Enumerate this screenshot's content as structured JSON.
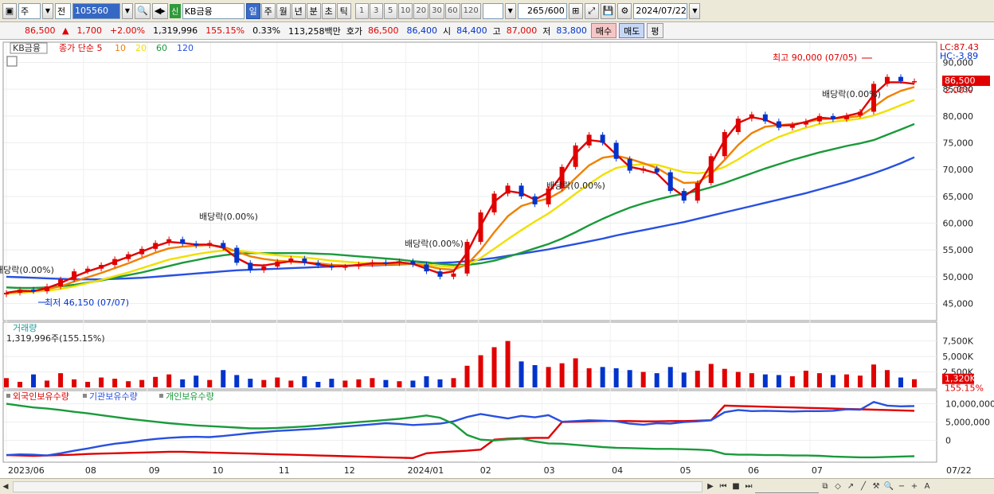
{
  "toolbar": {
    "market": "주",
    "filter": "전",
    "code": "105560",
    "new_badge": "신",
    "stock_name": "KB금융",
    "periods": [
      "일",
      "주",
      "월",
      "년",
      "분",
      "초",
      "틱"
    ],
    "active_period": "일",
    "minute_steps": [
      "1",
      "3",
      "5",
      "10",
      "20",
      "30",
      "60",
      "120"
    ],
    "count": "265",
    "count_total": "/600",
    "date": "2024/07/22"
  },
  "quote": {
    "price": "86,500",
    "change": "1,700",
    "change_pct": "+2.00%",
    "volume": "1,319,996",
    "volume_ratio": "155.15%",
    "turnover": "0.33%",
    "amount": "113,258백만",
    "ask_label": "호가",
    "ask": "86,500",
    "bid": "86,400",
    "open_label": "시",
    "open": "84,400",
    "high_label": "고",
    "high": "87,000",
    "low_label": "저",
    "low": "83,800",
    "buy": "매수",
    "sell": "매도",
    "avg": "평"
  },
  "chart_data": [
    {
      "type": "candlestick",
      "panel": "price",
      "stock": "KB금융",
      "legend": [
        "종가 단순 5",
        "10",
        "20",
        "60",
        "120"
      ],
      "legend_colors": [
        "#e00000",
        "#f08000",
        "#f0e000",
        "#1a9a3a",
        "#2850e0"
      ],
      "x_labels": [
        "2023/06",
        "08",
        "09",
        "10",
        "11",
        "12",
        "2024/01",
        "02",
        "03",
        "04",
        "05",
        "06",
        "07",
        "07/22"
      ],
      "y_ticks": [
        "90,000",
        "85,000",
        "80,000",
        "75,000",
        "70,000",
        "65,000",
        "60,000",
        "55,000",
        "50,000",
        "45,000"
      ],
      "ylim": [
        43000,
        92000
      ],
      "lc": "LC:87.43",
      "hc": "HC:-3.89",
      "last_price_tag": "86,500",
      "last_pct_tag": "2.00%",
      "annotations": {
        "high": "최고 90,000 (07/05)",
        "low": "최저 46,150 (07/07)",
        "dividends": [
          "배당락(0.00%)",
          "배당락(0.00%)",
          "배당락(0.00%)",
          "배당락(0.00%)",
          "배당락(0.00%)"
        ]
      },
      "close": [
        47000,
        47600,
        47300,
        48200,
        49500,
        51000,
        51500,
        52200,
        53300,
        54200,
        55200,
        56300,
        57000,
        56200,
        55800,
        56300,
        55400,
        52600,
        51200,
        51900,
        52800,
        53400,
        52600,
        52100,
        51700,
        51900,
        52300,
        52700,
        52500,
        52900,
        52300,
        51000,
        50000,
        50600,
        56500,
        62000,
        65500,
        67000,
        65000,
        63500,
        66500,
        70500,
        74500,
        76500,
        75000,
        72000,
        69800,
        70200,
        69500,
        66000,
        64200,
        67500,
        72500,
        77000,
        79500,
        80300,
        79000,
        77800,
        78400,
        79000,
        80000,
        79400,
        80100,
        80800,
        86000,
        87300,
        86500,
        86500
      ],
      "ma5": [
        47000,
        47400,
        47300,
        47900,
        48800,
        50000,
        51000,
        51800,
        52800,
        53700,
        54700,
        55700,
        56500,
        56300,
        56000,
        56000,
        55400,
        53500,
        52200,
        52100,
        52500,
        52900,
        52700,
        52300,
        51900,
        52000,
        52200,
        52500,
        52500,
        52700,
        52400,
        51500,
        50600,
        51000,
        54500,
        59500,
        64000,
        66000,
        65600,
        64400,
        65700,
        69000,
        73000,
        75500,
        75200,
        72800,
        70500,
        70000,
        69300,
        66800,
        65000,
        66700,
        71000,
        75500,
        78700,
        79800,
        79300,
        78200,
        78300,
        78900,
        79700,
        79500,
        80000,
        80600,
        84000,
        86300,
        86300,
        86000
      ],
      "ma10": [
        47000,
        47200,
        47300,
        47700,
        48200,
        49100,
        49900,
        50700,
        51600,
        52500,
        53500,
        54500,
        55300,
        55600,
        55800,
        55900,
        55600,
        54700,
        53800,
        53300,
        53000,
        52800,
        52700,
        52500,
        52200,
        52100,
        52100,
        52200,
        52300,
        52400,
        52400,
        52000,
        51500,
        51300,
        52300,
        55000,
        58300,
        61300,
        63200,
        64000,
        64600,
        66000,
        68400,
        70800,
        72200,
        72600,
        72000,
        71200,
        70300,
        68800,
        67500,
        67600,
        69200,
        71800,
        74600,
        76800,
        78000,
        78300,
        78500,
        78800,
        79400,
        79500,
        79700,
        80000,
        81700,
        83500,
        84700,
        85400
      ],
      "ma20": [
        46800,
        47000,
        47200,
        47400,
        47700,
        48200,
        48800,
        49400,
        50100,
        50800,
        51600,
        52400,
        53200,
        53700,
        54200,
        54600,
        54900,
        54900,
        54600,
        54300,
        54000,
        53800,
        53600,
        53300,
        53000,
        52800,
        52600,
        52500,
        52500,
        52500,
        52400,
        52300,
        52000,
        51800,
        52200,
        53500,
        55200,
        57000,
        58700,
        60300,
        61800,
        63600,
        65500,
        67300,
        69000,
        70300,
        70800,
        71000,
        70900,
        70200,
        69500,
        69300,
        69600,
        70500,
        71900,
        73500,
        74900,
        76100,
        77000,
        77800,
        78500,
        78900,
        79200,
        79500,
        80100,
        81000,
        82000,
        83000
      ],
      "ma60": [
        48000,
        47900,
        47900,
        48000,
        48200,
        48500,
        48900,
        49300,
        49800,
        50300,
        50800,
        51400,
        52000,
        52600,
        53100,
        53600,
        54000,
        54300,
        54400,
        54400,
        54400,
        54400,
        54400,
        54300,
        54200,
        54000,
        53800,
        53600,
        53400,
        53200,
        52900,
        52700,
        52400,
        52200,
        52200,
        52500,
        53000,
        53700,
        54500,
        55300,
        56100,
        57100,
        58300,
        59600,
        60800,
        61900,
        62900,
        63700,
        64400,
        65000,
        65500,
        66000,
        66700,
        67500,
        68400,
        69300,
        70200,
        71000,
        71800,
        72500,
        73200,
        73800,
        74400,
        74900,
        75500,
        76500,
        77500,
        78500
      ],
      "ma120": [
        50000,
        49900,
        49800,
        49700,
        49600,
        49500,
        49500,
        49500,
        49600,
        49700,
        49800,
        50000,
        50200,
        50400,
        50600,
        50800,
        51000,
        51200,
        51300,
        51400,
        51500,
        51600,
        51700,
        51800,
        51900,
        52000,
        52100,
        52100,
        52200,
        52300,
        52400,
        52500,
        52600,
        52700,
        52900,
        53200,
        53500,
        53900,
        54300,
        54700,
        55100,
        55600,
        56100,
        56600,
        57100,
        57700,
        58200,
        58700,
        59200,
        59700,
        60200,
        60800,
        61400,
        62000,
        62600,
        63200,
        63800,
        64400,
        65000,
        65600,
        66300,
        67000,
        67700,
        68500,
        69300,
        70200,
        71200,
        72300
      ]
    },
    {
      "type": "bar",
      "panel": "volume",
      "title": "거래량",
      "subtitle": "1,319,996주(155.15%)",
      "y_ticks": [
        "7,500K",
        "5,000K",
        "2,500K"
      ],
      "ylim": [
        0,
        9000000
      ],
      "last_tag": "1,320K",
      "last_pct_tag": "155.15%",
      "values": [
        1500,
        900,
        2100,
        1100,
        2300,
        1300,
        900,
        1600,
        1400,
        1000,
        1200,
        1700,
        2100,
        1300,
        1900,
        1200,
        2800,
        2000,
        1400,
        1200,
        1600,
        1100,
        1800,
        900,
        1400,
        1100,
        1300,
        1500,
        1200,
        1000,
        1100,
        1800,
        1300,
        1500,
        3500,
        5200,
        6500,
        7500,
        4200,
        3600,
        3300,
        3900,
        4700,
        3100,
        3300,
        3100,
        2800,
        2500,
        2300,
        3300,
        2400,
        2700,
        3800,
        3000,
        2500,
        2300,
        2100,
        2000,
        1800,
        2700,
        2300,
        2000,
        2100,
        1900,
        3700,
        2800,
        1600,
        1320
      ]
    },
    {
      "type": "line",
      "panel": "holdings",
      "legend": [
        "외국인보유수량",
        "기관보유수량",
        "개인보유수량"
      ],
      "legend_colors": [
        "#e00000",
        "#2850e0",
        "#1a9a3a"
      ],
      "y_ticks": [
        "10,000,000",
        "5,000,000",
        "0"
      ],
      "series": [
        {
          "name": "외국인보유수량",
          "values": [
            -4000000,
            -4100000,
            -4200000,
            -4100000,
            -4000000,
            -3900000,
            -3700000,
            -3600000,
            -3500000,
            -3400000,
            -3300000,
            -3200000,
            -3100000,
            -3100000,
            -3200000,
            -3300000,
            -3400000,
            -3500000,
            -3600000,
            -3700000,
            -3800000,
            -3900000,
            -4000000,
            -4100000,
            -4200000,
            -4300000,
            -4400000,
            -4500000,
            -4600000,
            -4700000,
            -4800000,
            -3500000,
            -3200000,
            -3000000,
            -2800000,
            -2500000,
            200000,
            500000,
            600000,
            700000,
            700000,
            5000000,
            5100000,
            5200000,
            5300000,
            5300000,
            5300000,
            5200000,
            5200000,
            5300000,
            5300000,
            5400000,
            5500000,
            9500000,
            9400000,
            9300000,
            9200000,
            9100000,
            9000000,
            8900000,
            8800000,
            8700000,
            8600000,
            8500000,
            8400000,
            8300000,
            8200000,
            8100000
          ]
        },
        {
          "name": "기관보유수량",
          "values": [
            -4000000,
            -3800000,
            -3900000,
            -4100000,
            -3500000,
            -2800000,
            -2200000,
            -1500000,
            -900000,
            -500000,
            0,
            400000,
            700000,
            900000,
            1000000,
            900000,
            1200000,
            1600000,
            2000000,
            2300000,
            2600000,
            2800000,
            3000000,
            3200000,
            3500000,
            3800000,
            4100000,
            4400000,
            4700000,
            4500000,
            4200000,
            4400000,
            4600000,
            5200000,
            6400000,
            7200000,
            6600000,
            6000000,
            6700000,
            6300000,
            6900000,
            5100000,
            5300000,
            5500000,
            5400000,
            5200000,
            4600000,
            4300000,
            4700000,
            4600000,
            5000000,
            5200000,
            5500000,
            7700000,
            8300000,
            8000000,
            8100000,
            8000000,
            7900000,
            8000000,
            8000000,
            8100000,
            8500000,
            8400000,
            10500000,
            9500000,
            9300000,
            9400000
          ]
        },
        {
          "name": "개인보유수량",
          "values": [
            10000000,
            9500000,
            9000000,
            8700000,
            8300000,
            7800000,
            7400000,
            6900000,
            6400000,
            5900000,
            5500000,
            5100000,
            4700000,
            4400000,
            4100000,
            3900000,
            3700000,
            3500000,
            3300000,
            3300000,
            3400000,
            3600000,
            3800000,
            4100000,
            4400000,
            4700000,
            5000000,
            5300000,
            5600000,
            5900000,
            6300000,
            6800000,
            6200000,
            4500000,
            1500000,
            200000,
            0,
            300000,
            500000,
            -300000,
            -800000,
            -900000,
            -1200000,
            -1500000,
            -1800000,
            -2000000,
            -2100000,
            -2200000,
            -2300000,
            -2300000,
            -2400000,
            -2500000,
            -2700000,
            -3700000,
            -3900000,
            -3900000,
            -4000000,
            -4000000,
            -4100000,
            -4100000,
            -4200000,
            -4400000,
            -4500000,
            -4600000,
            -4600000,
            -4500000,
            -4400000,
            -4300000
          ]
        }
      ]
    }
  ],
  "scrollbar": {
    "tools": [
      "▶",
      "⏮",
      "■",
      "⏭"
    ]
  }
}
